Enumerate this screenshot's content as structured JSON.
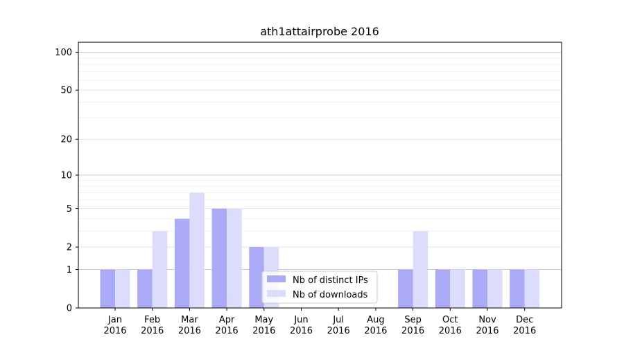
{
  "chart_data": {
    "type": "bar",
    "title": "ath1attairprobe 2016",
    "xlabel": "",
    "ylabel": "",
    "yscale": "log1p",
    "ylim": [
      0,
      120
    ],
    "yticks": [
      0,
      1,
      2,
      5,
      10,
      20,
      50,
      100
    ],
    "ytick_labels": [
      "0",
      "1",
      "2",
      "5",
      "10",
      "20",
      "50",
      "100"
    ],
    "categories": [
      [
        "Jan",
        "2016"
      ],
      [
        "Feb",
        "2016"
      ],
      [
        "Mar",
        "2016"
      ],
      [
        "Apr",
        "2016"
      ],
      [
        "May",
        "2016"
      ],
      [
        "Jun",
        "2016"
      ],
      [
        "Jul",
        "2016"
      ],
      [
        "Aug",
        "2016"
      ],
      [
        "Sep",
        "2016"
      ],
      [
        "Oct",
        "2016"
      ],
      [
        "Nov",
        "2016"
      ],
      [
        "Dec",
        "2016"
      ]
    ],
    "series": [
      {
        "name": "Nb of distinct IPs",
        "color": "#aaaaf6",
        "values": [
          1,
          1,
          4,
          5,
          2,
          0,
          0,
          0,
          1,
          1,
          1,
          1
        ]
      },
      {
        "name": "Nb of downloads",
        "color": "#dcdcfc",
        "values": [
          1,
          3,
          7,
          5,
          2,
          0,
          0,
          0,
          3,
          1,
          1,
          1
        ]
      }
    ],
    "grid": true,
    "legend_position": "bottom-center"
  }
}
